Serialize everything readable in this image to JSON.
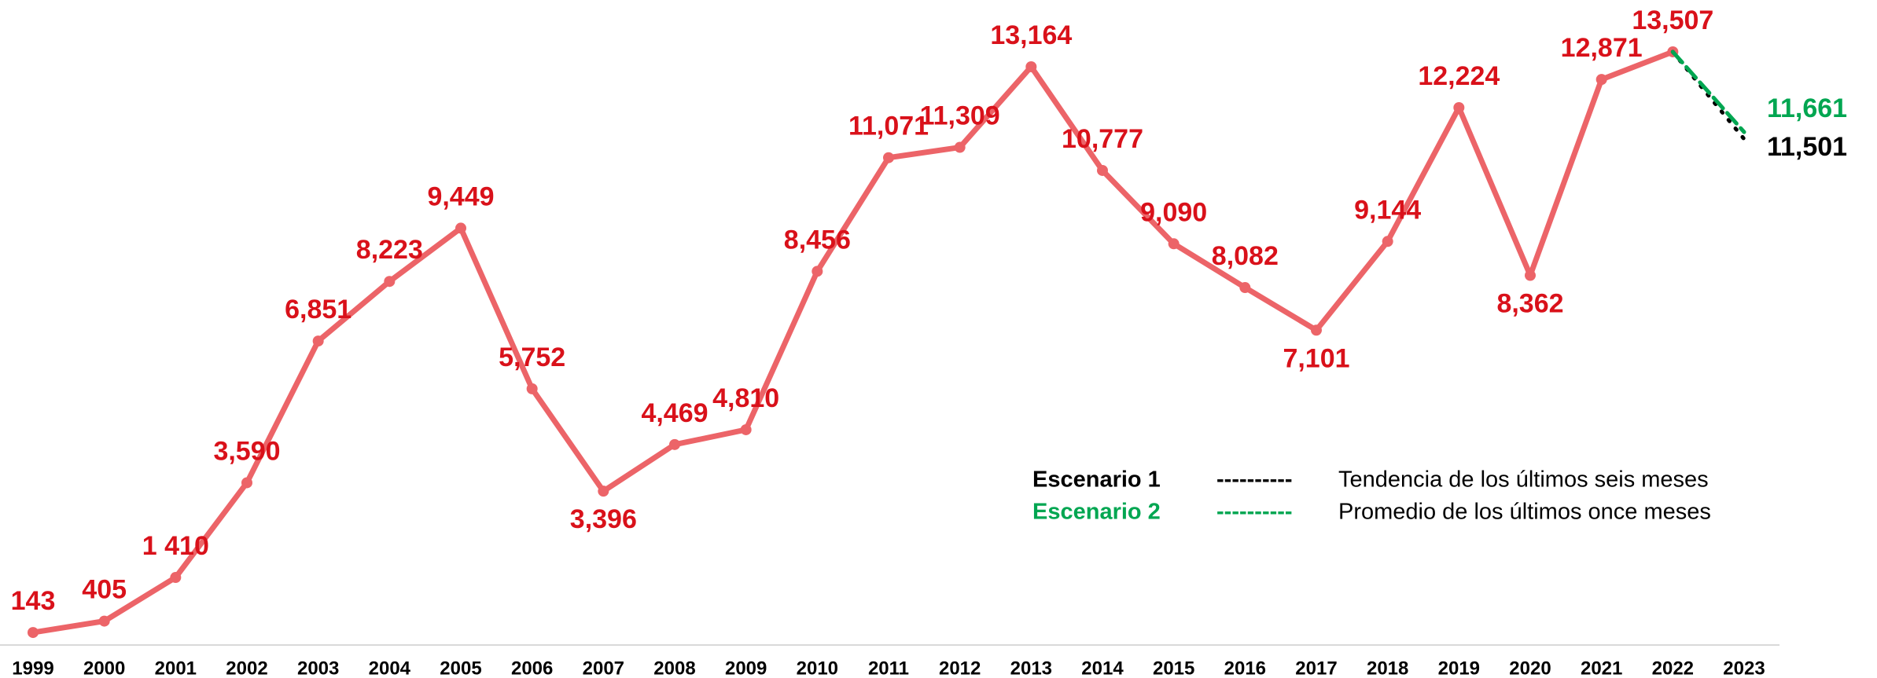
{
  "chart_data": {
    "type": "line",
    "categories": [
      "1999",
      "2000",
      "2001",
      "2002",
      "2003",
      "2004",
      "2005",
      "2006",
      "2007",
      "2008",
      "2009",
      "2010",
      "2011",
      "2012",
      "2013",
      "2014",
      "2015",
      "2016",
      "2017",
      "2018",
      "2019",
      "2020",
      "2021",
      "2022",
      "2023"
    ],
    "ylim": [
      0,
      14700
    ],
    "series": [
      {
        "color": "#ec6468",
        "label_color": "#d9111a",
        "values": [
          143,
          405,
          1410,
          3590,
          6851,
          8223,
          9449,
          5752,
          3396,
          4469,
          4810,
          8456,
          11071,
          11309,
          13164,
          10777,
          9090,
          8082,
          7101,
          9144,
          12224,
          8362,
          12871,
          13507,
          null
        ],
        "value_labels": [
          "143",
          "405",
          "1 410",
          "3,590",
          "6,851",
          "8,223",
          "9,449",
          "5,752",
          "3,396",
          "4,469",
          "4,810",
          "8,456",
          "11,071",
          "11,309",
          "13,164",
          "10,777",
          "9,090",
          "8,082",
          "7,101",
          "9,144",
          "12,224",
          "8,362",
          "12,871",
          "13,507",
          null
        ]
      },
      {
        "name": "Escenario 1",
        "color": "#000000",
        "dash": "dotted",
        "line_label": "----------",
        "description": "Tendencia de los últimos seis meses",
        "values": [
          null,
          null,
          null,
          null,
          null,
          null,
          null,
          null,
          null,
          null,
          null,
          null,
          null,
          null,
          null,
          null,
          null,
          null,
          null,
          null,
          null,
          null,
          null,
          13507,
          11501
        ],
        "value_labels": [
          null,
          null,
          null,
          null,
          null,
          null,
          null,
          null,
          null,
          null,
          null,
          null,
          null,
          null,
          null,
          null,
          null,
          null,
          null,
          null,
          null,
          null,
          null,
          null,
          "11,501"
        ]
      },
      {
        "name": "Escenario 2",
        "color": "#00a651",
        "dash": "dashed",
        "line_label": "----------",
        "description": "Promedio de los últimos once meses",
        "values": [
          null,
          null,
          null,
          null,
          null,
          null,
          null,
          null,
          null,
          null,
          null,
          null,
          null,
          null,
          null,
          null,
          null,
          null,
          null,
          null,
          null,
          null,
          null,
          13507,
          11661
        ],
        "value_labels": [
          null,
          null,
          null,
          null,
          null,
          null,
          null,
          null,
          null,
          null,
          null,
          null,
          null,
          null,
          null,
          null,
          null,
          null,
          null,
          null,
          null,
          null,
          null,
          null,
          "11,661"
        ]
      }
    ]
  }
}
